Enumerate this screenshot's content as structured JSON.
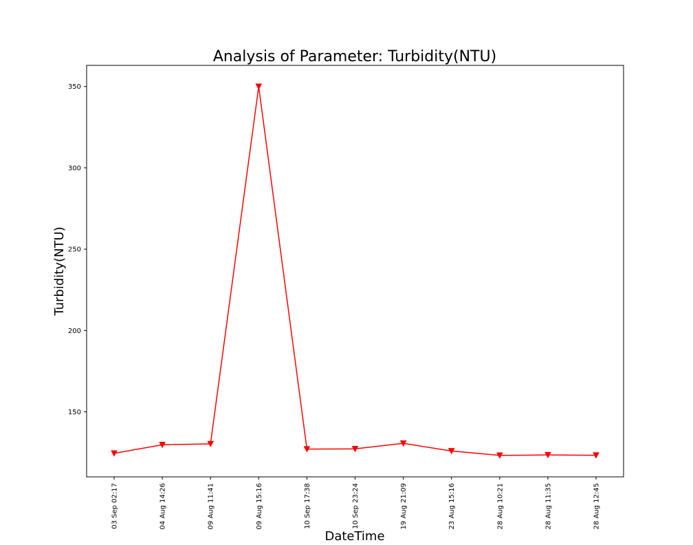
{
  "chart_data": {
    "type": "line",
    "title": "Analysis of Parameter: Turbidity(NTU)",
    "xlabel": "DateTime",
    "ylabel": "Turbidity(NTU)",
    "categories": [
      "03 Sep 02:17",
      "04 Aug 14:26",
      "09 Aug 11:41",
      "09 Aug 15:16",
      "10 Sep 17:38",
      "10 Sep 23:24",
      "19 Aug 21:09",
      "23 Aug 15:16",
      "28 Aug 10:21",
      "28 Aug 11:35",
      "28 Aug 12:45"
    ],
    "series": [
      {
        "values": [
          124.5,
          129.7,
          130.3,
          350.0,
          127.1,
          127.2,
          130.6,
          125.9,
          123.2,
          123.5,
          123.3
        ]
      }
    ],
    "ylim": [
      110,
      363
    ],
    "yticks": [
      150,
      200,
      250,
      300,
      350
    ],
    "marker": "triangle-down",
    "grid": false,
    "color": "#ff0000"
  }
}
